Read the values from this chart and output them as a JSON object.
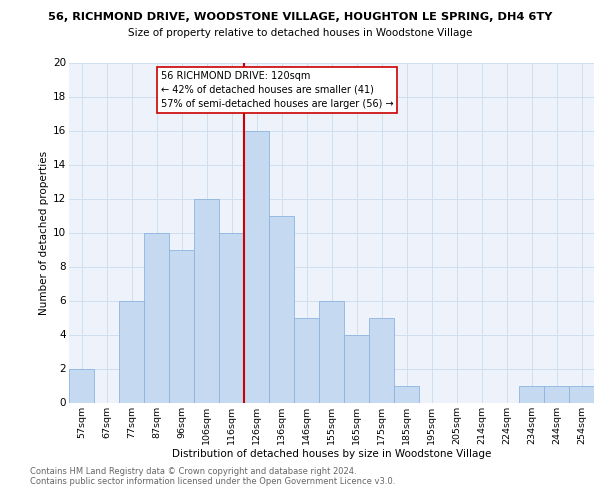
{
  "title1": "56, RICHMOND DRIVE, WOODSTONE VILLAGE, HOUGHTON LE SPRING, DH4 6TY",
  "title2": "Size of property relative to detached houses in Woodstone Village",
  "xlabel": "Distribution of detached houses by size in Woodstone Village",
  "ylabel": "Number of detached properties",
  "bin_labels": [
    "57sqm",
    "67sqm",
    "77sqm",
    "87sqm",
    "96sqm",
    "106sqm",
    "116sqm",
    "126sqm",
    "136sqm",
    "146sqm",
    "155sqm",
    "165sqm",
    "175sqm",
    "185sqm",
    "195sqm",
    "205sqm",
    "214sqm",
    "224sqm",
    "234sqm",
    "244sqm",
    "254sqm"
  ],
  "bin_values": [
    2,
    0,
    6,
    10,
    9,
    12,
    10,
    16,
    11,
    5,
    6,
    4,
    5,
    1,
    0,
    0,
    0,
    0,
    1,
    1,
    1
  ],
  "bar_color": "#c5d9f1",
  "bar_edge_color": "#8cb4e0",
  "highlight_line_color": "#cc0000",
  "highlight_line_index": 6,
  "annotation_line1": "56 RICHMOND DRIVE: 120sqm",
  "annotation_line2": "← 42% of detached houses are smaller (41)",
  "annotation_line3": "57% of semi-detached houses are larger (56) →",
  "annotation_box_facecolor": "#ffffff",
  "annotation_box_edgecolor": "#cc0000",
  "ylim": [
    0,
    20
  ],
  "yticks": [
    0,
    2,
    4,
    6,
    8,
    10,
    12,
    14,
    16,
    18,
    20
  ],
  "grid_color": "#d0dff0",
  "axes_bg_color": "#edf2fb",
  "footer_line1": "Contains HM Land Registry data © Crown copyright and database right 2024.",
  "footer_line2": "Contains public sector information licensed under the Open Government Licence v3.0.",
  "footer_color": "#666666"
}
